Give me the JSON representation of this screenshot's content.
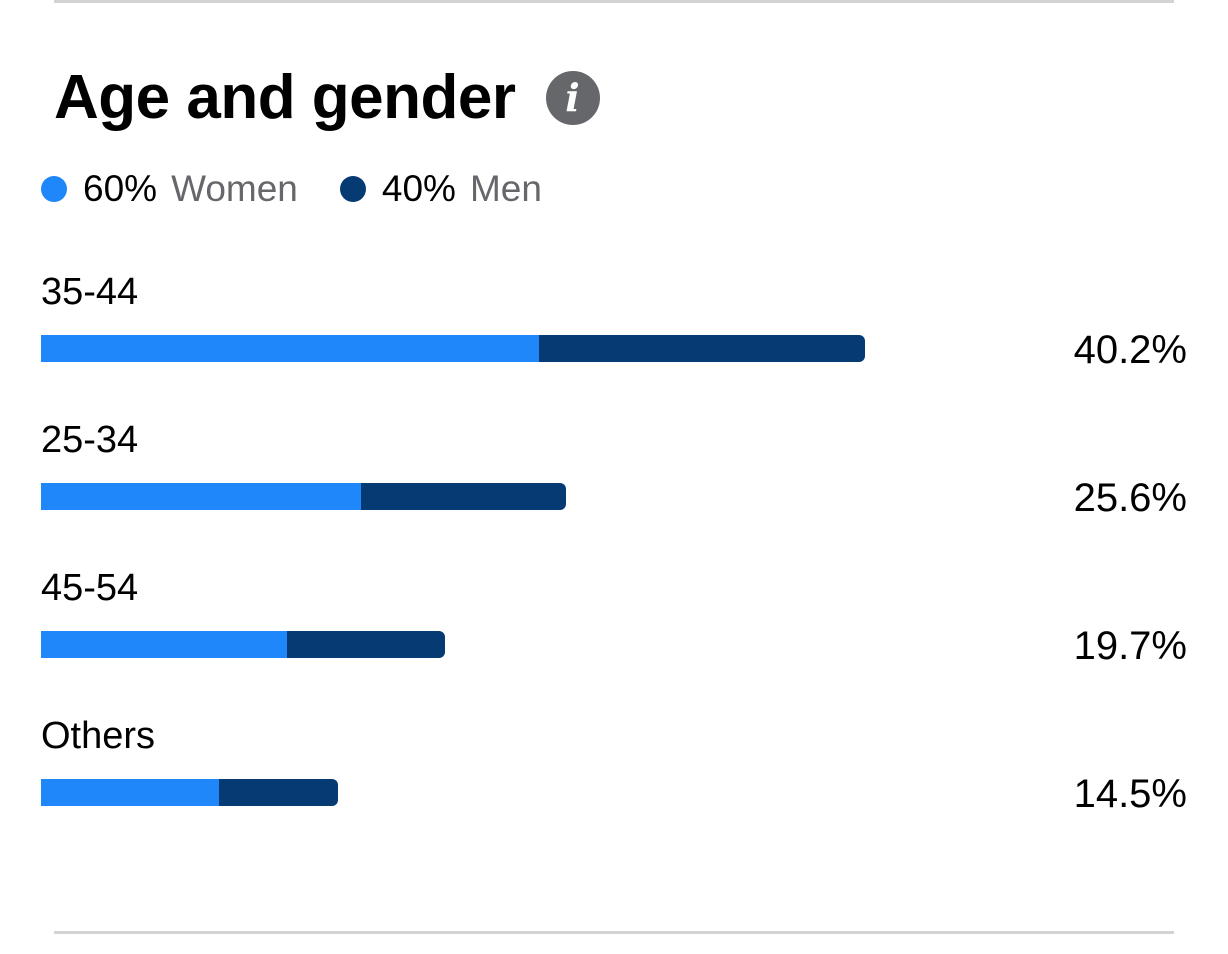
{
  "header": {
    "title": "Age and gender",
    "info_icon": "info-icon"
  },
  "legend": [
    {
      "pct": "60%",
      "name": "Women",
      "color": "#1f87fa"
    },
    {
      "pct": "40%",
      "name": "Men",
      "color": "#053a72"
    }
  ],
  "chart_data": {
    "type": "bar",
    "orientation": "horizontal",
    "stacked": true,
    "title": "Age and gender",
    "categories": [
      "35-44",
      "25-34",
      "45-54",
      "Others"
    ],
    "totals": [
      40.2,
      25.6,
      19.7,
      14.5
    ],
    "total_labels": [
      "40.2%",
      "25.6%",
      "19.7%",
      "14.5%"
    ],
    "series": [
      {
        "name": "Women",
        "color": "#1f87fa",
        "values": [
          24.3,
          15.6,
          12.0,
          8.7
        ]
      },
      {
        "name": "Men",
        "color": "#053a72",
        "values": [
          15.9,
          10.0,
          7.7,
          5.8
        ]
      }
    ],
    "xlim": [
      0,
      43.4
    ],
    "grid": false,
    "legend_position": "top-left"
  }
}
